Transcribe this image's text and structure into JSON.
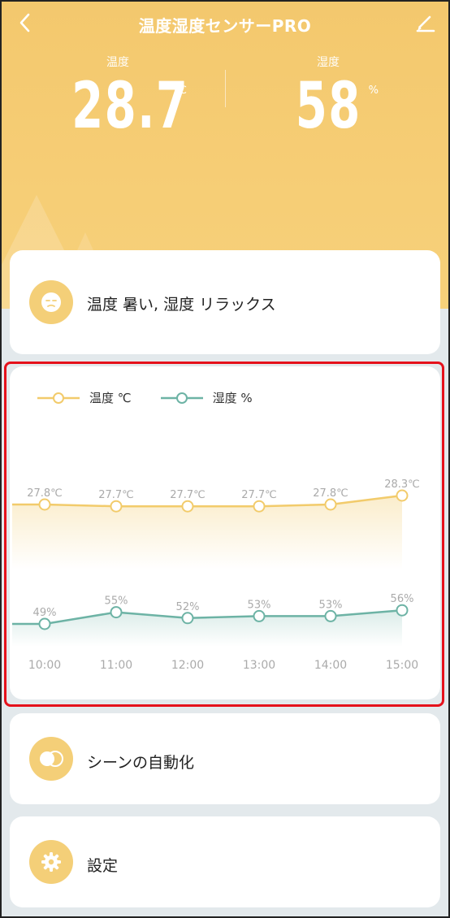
{
  "header": {
    "title": "温度湿度センサーPRO",
    "temperature": {
      "label": "温度",
      "value": "28.7",
      "unit": "℃"
    },
    "humidity": {
      "label": "湿度",
      "value": "58",
      "unit": "%"
    }
  },
  "status": {
    "text": "温度 暑い, 湿度 リラックス",
    "icon": "face-icon"
  },
  "chart": {
    "legend": {
      "temp": "温度 ℃",
      "hum": "湿度 %"
    }
  },
  "chart_data": {
    "type": "line",
    "categories": [
      "10:00",
      "11:00",
      "12:00",
      "13:00",
      "14:00",
      "15:00"
    ],
    "series": [
      {
        "name": "温度 ℃",
        "values": [
          27.8,
          27.7,
          27.7,
          27.7,
          27.8,
          28.3
        ],
        "labels": [
          "27.8℃",
          "27.7℃",
          "27.7℃",
          "27.7℃",
          "27.8℃",
          "28.3℃"
        ],
        "color": "#f2cb6b"
      },
      {
        "name": "湿度 %",
        "values": [
          49,
          55,
          52,
          53,
          53,
          56
        ],
        "labels": [
          "49%",
          "55%",
          "52%",
          "53%",
          "53%",
          "56%"
        ],
        "color": "#6db3a5"
      }
    ]
  },
  "scene": {
    "label": "シーンの自動化",
    "icon": "toggle-icon"
  },
  "settings": {
    "label": "設定",
    "icon": "gear-icon"
  },
  "colors": {
    "accent": "#f4cf78",
    "hero": "#f6cd75",
    "humidity": "#6db3a5"
  }
}
